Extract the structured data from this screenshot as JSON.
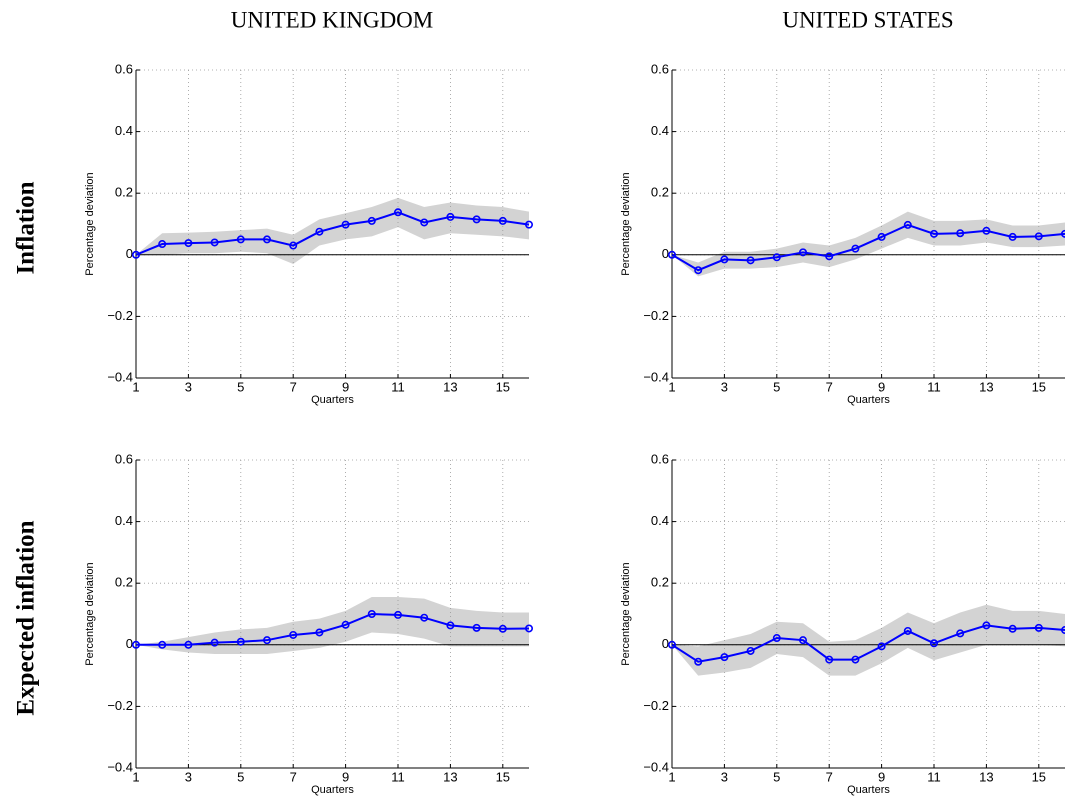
{
  "column_titles": [
    "UNITED KINGDOM",
    "UNITED STATES"
  ],
  "row_titles": [
    "Inflation",
    "Expected inflation"
  ],
  "chart_data": [
    {
      "type": "line",
      "ylabel": "Percentage deviation",
      "xlabel": "Quarters",
      "x": [
        1,
        2,
        3,
        4,
        5,
        6,
        7,
        8,
        9,
        10,
        11,
        12,
        13,
        14,
        15,
        16
      ],
      "values": [
        0,
        0.035,
        0.038,
        0.04,
        0.05,
        0.05,
        0.03,
        0.075,
        0.098,
        0.11,
        0.138,
        0.105,
        0.123,
        0.115,
        0.11,
        0.098
      ],
      "band_upper": [
        0,
        0.07,
        0.072,
        0.075,
        0.08,
        0.085,
        0.065,
        0.115,
        0.135,
        0.155,
        0.185,
        0.155,
        0.17,
        0.16,
        0.155,
        0.14
      ],
      "band_lower": [
        0,
        0,
        0.005,
        0.005,
        0.01,
        0.005,
        -0.03,
        0.03,
        0.05,
        0.06,
        0.09,
        0.05,
        0.07,
        0.065,
        0.06,
        0.05
      ],
      "color": "#0000ff",
      "band_color": "#d3d3d3",
      "xlim": [
        1,
        16
      ],
      "xticks": [
        1,
        3,
        5,
        7,
        9,
        11,
        13,
        15
      ],
      "ylim": [
        -0.4,
        0.6
      ],
      "yticks": [
        {
          "value": -0.4,
          "label": "−0.4"
        },
        {
          "value": -0.2,
          "label": "−0.2"
        },
        0,
        0.2,
        0.4,
        0.6
      ],
      "grid": true,
      "zero_line": true
    },
    {
      "type": "line",
      "ylabel": "Percentage deviation",
      "xlabel": "Quarters",
      "x": [
        1,
        2,
        3,
        4,
        5,
        6,
        7,
        8,
        9,
        10,
        11,
        12,
        13,
        14,
        15,
        16
      ],
      "values": [
        0,
        -0.05,
        -0.015,
        -0.018,
        -0.008,
        0.008,
        -0.005,
        0.02,
        0.058,
        0.097,
        0.068,
        0.07,
        0.078,
        0.058,
        0.06,
        0.068
      ],
      "band_upper": [
        0,
        -0.025,
        0.01,
        0.01,
        0.02,
        0.04,
        0.03,
        0.055,
        0.095,
        0.14,
        0.11,
        0.11,
        0.115,
        0.095,
        0.095,
        0.105
      ],
      "band_lower": [
        0,
        -0.07,
        -0.045,
        -0.045,
        -0.04,
        -0.025,
        -0.04,
        -0.015,
        0.02,
        0.055,
        0.03,
        0.03,
        0.04,
        0.025,
        0.025,
        0.03
      ],
      "color": "#0000ff",
      "band_color": "#d3d3d3",
      "xlim": [
        1,
        16
      ],
      "xticks": [
        1,
        3,
        5,
        7,
        9,
        11,
        13,
        15
      ],
      "ylim": [
        -0.4,
        0.6
      ],
      "yticks": [
        {
          "value": -0.4,
          "label": "−0.4"
        },
        {
          "value": -0.2,
          "label": "−0.2"
        },
        0,
        0.2,
        0.4,
        0.6
      ],
      "grid": true,
      "zero_line": true
    },
    {
      "type": "line",
      "ylabel": "Percentage deviation",
      "xlabel": "Quarters",
      "x": [
        1,
        2,
        3,
        4,
        5,
        6,
        7,
        8,
        9,
        10,
        11,
        12,
        13,
        14,
        15,
        16
      ],
      "values": [
        0,
        0,
        0,
        0.007,
        0.01,
        0.015,
        0.032,
        0.04,
        0.065,
        0.1,
        0.097,
        0.088,
        0.063,
        0.055,
        0.052,
        0.053
      ],
      "band_upper": [
        0,
        0.01,
        0.025,
        0.04,
        0.05,
        0.055,
        0.075,
        0.085,
        0.11,
        0.155,
        0.155,
        0.15,
        0.12,
        0.11,
        0.105,
        0.105
      ],
      "band_lower": [
        0,
        -0.015,
        -0.025,
        -0.03,
        -0.03,
        -0.03,
        -0.02,
        -0.01,
        0.01,
        0.04,
        0.035,
        0.02,
        -0.005,
        -0.005,
        -0.005,
        -0.005
      ],
      "color": "#0000ff",
      "band_color": "#d3d3d3",
      "xlim": [
        1,
        16
      ],
      "xticks": [
        1,
        3,
        5,
        7,
        9,
        11,
        13,
        15
      ],
      "ylim": [
        -0.4,
        0.6
      ],
      "yticks": [
        {
          "value": -0.4,
          "label": "−0.4"
        },
        {
          "value": -0.2,
          "label": "−0.2"
        },
        0,
        0.2,
        0.4,
        0.6
      ],
      "grid": true,
      "zero_line": true
    },
    {
      "type": "line",
      "ylabel": "Percentage deviation",
      "xlabel": "Quarters",
      "x": [
        1,
        2,
        3,
        4,
        5,
        6,
        7,
        8,
        9,
        10,
        11,
        12,
        13,
        14,
        15,
        16
      ],
      "values": [
        0,
        -0.055,
        -0.04,
        -0.02,
        0.022,
        0.015,
        -0.048,
        -0.048,
        -0.005,
        0.045,
        0.005,
        0.037,
        0.063,
        0.052,
        0.055,
        0.048
      ],
      "band_upper": [
        0,
        -0.005,
        0.015,
        0.035,
        0.075,
        0.07,
        0.01,
        0.015,
        0.055,
        0.105,
        0.07,
        0.105,
        0.13,
        0.11,
        0.11,
        0.1
      ],
      "band_lower": [
        0,
        -0.1,
        -0.09,
        -0.075,
        -0.03,
        -0.04,
        -0.1,
        -0.1,
        -0.06,
        -0.01,
        -0.05,
        -0.025,
        0,
        0,
        0,
        -0.005
      ],
      "color": "#0000ff",
      "band_color": "#d3d3d3",
      "xlim": [
        1,
        16
      ],
      "xticks": [
        1,
        3,
        5,
        7,
        9,
        11,
        13,
        15
      ],
      "ylim": [
        -0.4,
        0.6
      ],
      "yticks": [
        {
          "value": -0.4,
          "label": "−0.4"
        },
        {
          "value": -0.2,
          "label": "−0.2"
        },
        0,
        0.2,
        0.4,
        0.6
      ],
      "grid": true,
      "zero_line": true
    }
  ]
}
